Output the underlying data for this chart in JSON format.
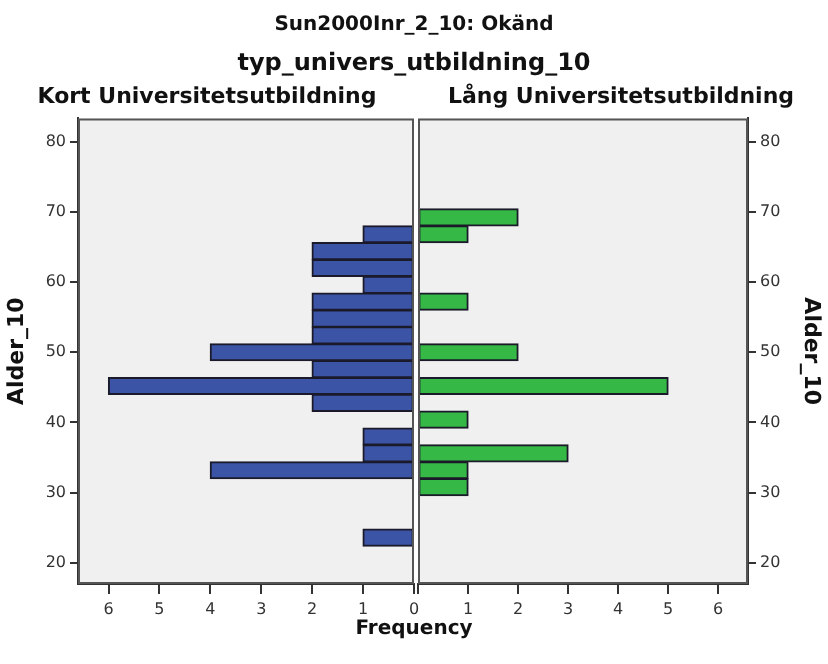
{
  "chart_data": [
    {
      "type": "other",
      "title": "Sun2000Inr_2_10: Okänd",
      "subtitle": "typ_univers_utbildning_10"
    },
    {
      "type": "histogram",
      "title": "Kort Universitetsutbildning",
      "orientation": "horizontal",
      "xlabel": "Frequency",
      "ylabel": "Alder_10",
      "color": "#3b54a6",
      "bins": [
        22.4,
        24.8,
        27.2,
        29.6,
        32,
        34.4,
        36.8,
        39.2,
        41.6,
        44,
        46.4,
        48.8,
        51.2,
        53.6,
        56,
        58.4,
        60.8,
        63.2,
        65.6,
        68,
        70.4
      ],
      "values": [
        1,
        0,
        0,
        0,
        4,
        1,
        1,
        0,
        2,
        6,
        2,
        4,
        2,
        2,
        2,
        1,
        2,
        2,
        1,
        0
      ],
      "xlim": [
        6.6,
        0
      ],
      "xticks": [
        0,
        1,
        2,
        3,
        4,
        5,
        6
      ],
      "ylim": [
        17,
        83.3
      ],
      "yticks": [
        20,
        30,
        40,
        50,
        60,
        70,
        80
      ]
    },
    {
      "type": "histogram",
      "title": "Lång Universitetsutbildning",
      "orientation": "horizontal",
      "ylabel": "Alder_10",
      "color": "#36b846",
      "bins": [
        22.4,
        24.8,
        27.2,
        29.6,
        32,
        34.4,
        36.8,
        39.2,
        41.6,
        44,
        46.4,
        48.8,
        51.2,
        53.6,
        56,
        58.4,
        60.8,
        63.2,
        65.6,
        68,
        70.4
      ],
      "values": [
        0,
        0,
        0,
        1,
        1,
        3,
        0,
        1,
        0,
        5,
        0,
        2,
        0,
        0,
        1,
        0,
        0,
        0,
        1,
        2
      ],
      "xlim": [
        0,
        6.6
      ],
      "xticks": [
        {
          "value": 0,
          "label": null
        },
        1,
        2,
        3,
        4,
        5,
        6
      ],
      "ylim": [
        17,
        83.3
      ],
      "yticks": [
        20,
        30,
        40,
        50,
        60,
        70,
        80
      ]
    }
  ]
}
